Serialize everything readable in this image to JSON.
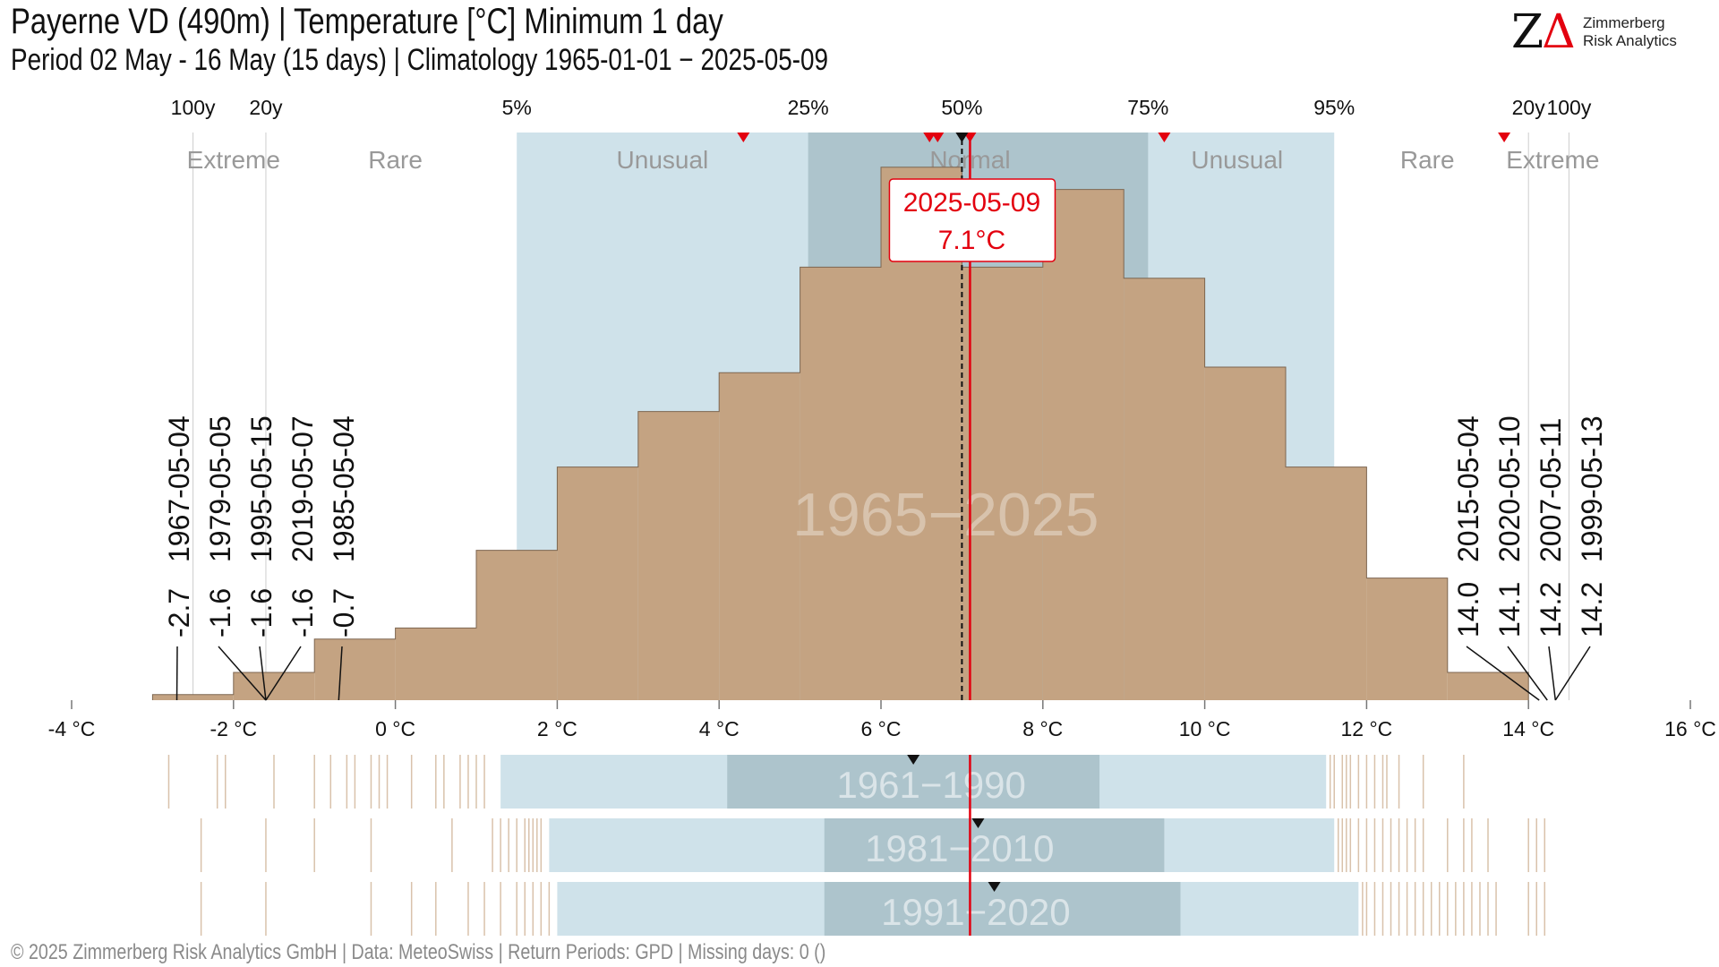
{
  "header": {
    "title": "Payerne  VD (490m) | Temperature [°C] Minimum 1 day",
    "subtitle": "Period 02 May - 16 May (15 days) | Climatology 1965-01-01 − 2025-05-09"
  },
  "logo": {
    "mark": "Z",
    "mark_delta": "Δ",
    "line1": "Zimmerberg",
    "line2": "Risk Analytics"
  },
  "footer": "©  2025 Zimmerberg Risk Analytics GmbH | Data: MeteoSwiss | Return Periods: GPD | Missing days: 0 ()",
  "colors": {
    "histogram_fill": "#c4a382",
    "histogram_stroke": "#7d6650",
    "band_unusual": "#cfe2ea",
    "band_normal": "#adc4cc",
    "band_text": "#999999",
    "highlight": "#e3000f",
    "rug": "#d9c2ab"
  },
  "chart_data": {
    "type": "histogram",
    "xlim": [
      -4,
      16
    ],
    "x_ticks": [
      -4,
      -2,
      0,
      2,
      4,
      6,
      8,
      10,
      12,
      14,
      16
    ],
    "x_tick_labels": [
      "-4 °C",
      "-2 °C",
      "0 °C",
      "2 °C",
      "4 °C",
      "6 °C",
      "8 °C",
      "10 °C",
      "12 °C",
      "14 °C",
      "16 °C"
    ],
    "bins": [
      {
        "x0": -3.0,
        "x1": -2.0,
        "count": 1
      },
      {
        "x0": -2.0,
        "x1": -1.0,
        "count": 5
      },
      {
        "x0": -1.0,
        "x1": 0.0,
        "count": 11
      },
      {
        "x0": 0.0,
        "x1": 1.0,
        "count": 13
      },
      {
        "x0": 1.0,
        "x1": 2.0,
        "count": 27
      },
      {
        "x0": 2.0,
        "x1": 3.0,
        "count": 42
      },
      {
        "x0": 3.0,
        "x1": 4.0,
        "count": 52
      },
      {
        "x0": 4.0,
        "x1": 5.0,
        "count": 59
      },
      {
        "x0": 5.0,
        "x1": 6.0,
        "count": 78
      },
      {
        "x0": 6.0,
        "x1": 7.0,
        "count": 96
      },
      {
        "x0": 7.0,
        "x1": 8.0,
        "count": 78
      },
      {
        "x0": 8.0,
        "x1": 9.0,
        "count": 92
      },
      {
        "x0": 9.0,
        "x1": 10.0,
        "count": 76
      },
      {
        "x0": 10.0,
        "x1": 11.0,
        "count": 60
      },
      {
        "x0": 11.0,
        "x1": 12.0,
        "count": 42
      },
      {
        "x0": 12.0,
        "x1": 13.0,
        "count": 22
      },
      {
        "x0": 13.0,
        "x1": 14.0,
        "count": 5
      }
    ],
    "count_max": 100,
    "watermark": "1965−2025",
    "percentiles": [
      {
        "label": "5%",
        "value": 1.5
      },
      {
        "label": "25%",
        "value": 5.1
      },
      {
        "label": "50%",
        "value": 7.0
      },
      {
        "label": "75%",
        "value": 9.3
      },
      {
        "label": "95%",
        "value": 11.6
      }
    ],
    "return_periods": [
      {
        "label": "100y",
        "value": -2.5
      },
      {
        "label": "20y",
        "value": -1.6
      },
      {
        "label": "20y",
        "value": 14.0
      },
      {
        "label": "100y",
        "value": 14.5
      }
    ],
    "categories": [
      {
        "label": "Extreme",
        "center": -2.0
      },
      {
        "label": "Rare",
        "center": 0.0
      },
      {
        "label": "Unusual",
        "center": 3.3
      },
      {
        "label": "Normal",
        "center": 7.1
      },
      {
        "label": "Unusual",
        "center": 10.4
      },
      {
        "label": "Rare",
        "center": 12.75
      },
      {
        "label": "Extreme",
        "center": 14.3
      }
    ],
    "median": 7.0,
    "highlight": {
      "date": "2025-05-09",
      "value_label": "7.1°C",
      "value": 7.1
    },
    "recent_markers": [
      4.3,
      6.6,
      6.7,
      7.1,
      9.5,
      13.7
    ],
    "extremes_low": [
      {
        "date": "1967-05-04",
        "value_label": "-2.7",
        "value": -2.7
      },
      {
        "date": "1979-05-05",
        "value_label": "-1.6",
        "value": -1.6
      },
      {
        "date": "1995-05-15",
        "value_label": "-1.6",
        "value": -1.6
      },
      {
        "date": "2019-05-07",
        "value_label": "-1.6",
        "value": -1.6
      },
      {
        "date": "1985-05-04",
        "value_label": "-0.7",
        "value": -0.7
      }
    ],
    "extremes_high": [
      {
        "date": "2015-05-04",
        "value_label": "14.0",
        "value": 14.0
      },
      {
        "date": "2020-05-10",
        "value_label": "14.1",
        "value": 14.1
      },
      {
        "date": "2007-05-11",
        "value_label": "14.2",
        "value": 14.2
      },
      {
        "date": "1999-05-13",
        "value_label": "14.2",
        "value": 14.2
      }
    ],
    "climatologies": [
      {
        "label": "1961−1990",
        "p5": 1.3,
        "p25": 4.1,
        "p75": 8.7,
        "p95": 11.5,
        "median": 6.4,
        "rug": [
          -2.8,
          -2.2,
          -2.1,
          -1.5,
          -1.0,
          -0.8,
          -0.6,
          -0.5,
          -0.3,
          -0.2,
          -0.1,
          0.2,
          0.5,
          0.6,
          0.8,
          0.9,
          1.0,
          1.1,
          11.55,
          11.6,
          11.7,
          11.75,
          11.8,
          11.9,
          12.0,
          12.1,
          12.2,
          12.25,
          12.4,
          12.7,
          13.2
        ]
      },
      {
        "label": "1981−2010",
        "p5": 1.9,
        "p25": 5.3,
        "p75": 9.5,
        "p95": 11.6,
        "median": 7.2,
        "rug": [
          -2.4,
          -1.6,
          -1.0,
          -0.3,
          0.7,
          1.2,
          1.3,
          1.4,
          1.5,
          1.6,
          1.65,
          1.7,
          1.75,
          1.8,
          11.65,
          11.7,
          11.75,
          11.8,
          11.9,
          12.0,
          12.1,
          12.2,
          12.3,
          12.4,
          12.5,
          12.6,
          12.7,
          13.0,
          13.2,
          13.3,
          13.5,
          14.0,
          14.1,
          14.2
        ]
      },
      {
        "label": "1991−2020",
        "p5": 2.0,
        "p25": 5.3,
        "p75": 9.7,
        "p95": 11.9,
        "median": 7.4,
        "rug": [
          -2.4,
          -1.6,
          -0.3,
          0.2,
          0.5,
          0.9,
          1.1,
          1.3,
          1.5,
          1.6,
          1.7,
          1.8,
          1.9,
          11.95,
          12.0,
          12.1,
          12.2,
          12.3,
          12.4,
          12.5,
          12.6,
          12.7,
          12.8,
          12.9,
          13.0,
          13.1,
          13.2,
          13.3,
          13.4,
          13.5,
          13.6,
          14.0,
          14.1,
          14.2
        ]
      }
    ]
  }
}
